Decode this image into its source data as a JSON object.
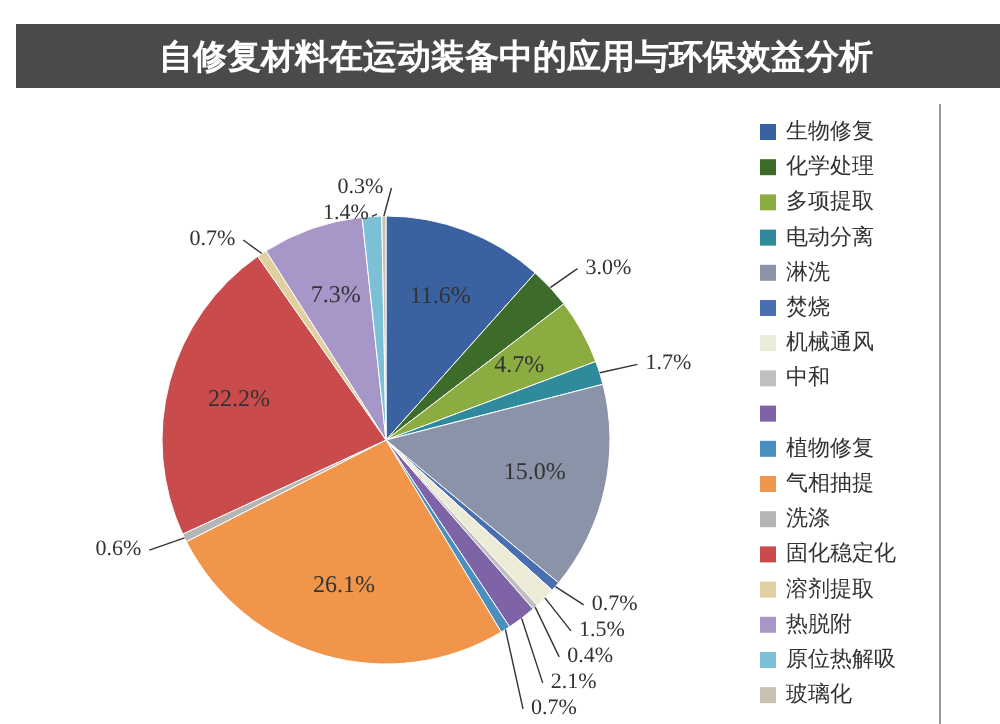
{
  "chart_data": {
    "type": "pie",
    "title": "自修复材料在运动装备中的应用与环保效益分析",
    "categories": [
      "生物修复",
      "化学处理",
      "多项提取",
      "电动分离",
      "淋洗",
      "焚烧",
      "机械通风",
      "中和",
      null,
      "植物修复",
      "气相抽提",
      "洗涤",
      "固化稳定化",
      "溶剂提取",
      "热脱附",
      "原位热解吸",
      "玻璃化"
    ],
    "values": [
      11.6,
      3.0,
      4.7,
      1.7,
      15.0,
      0.7,
      1.5,
      0.4,
      2.1,
      0.7,
      26.1,
      0.6,
      22.2,
      0.7,
      7.3,
      1.4,
      0.3
    ],
    "colors": [
      "#3a62a0",
      "#3d6b2a",
      "#8aac40",
      "#2f8a9c",
      "#8a93a8",
      "#4a6fb0",
      "#ecebd8",
      "#c0c0c0",
      "#7e64a6",
      "#4a8fc0",
      "#f0954a",
      "#b5b5b5",
      "#c94b4b",
      "#e0d0a0",
      "#a796c8",
      "#7cc0d8",
      "#c8c0b0"
    ],
    "value_labels": [
      "11.6%",
      "3.0%",
      "4.7%",
      "1.7%",
      "15.0%",
      "0.7%",
      "1.5%",
      "0.4%",
      "2.1%",
      "0.7%",
      "26.1%",
      "0.6%",
      "22.2%",
      "0.7%",
      "7.3%",
      "1.4%",
      "0.3%"
    ],
    "legend": "right"
  }
}
